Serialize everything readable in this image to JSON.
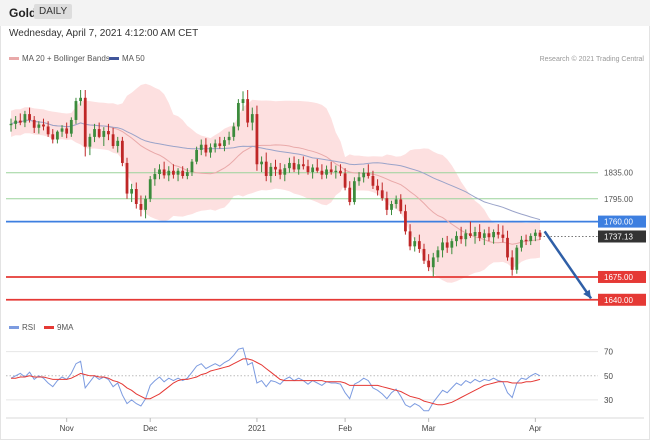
{
  "header": {
    "symbol": "Gold",
    "timeframe": "DAILY",
    "datetime": "Wednesday, April 7, 2021 4:12:00 AM CET"
  },
  "legend": {
    "ma20": "MA 20 + Bollinger Bands",
    "ma50": "MA 50",
    "credit": "Research © 2021 Trading Central"
  },
  "colors": {
    "bull": "#3c8b3c",
    "bear": "#bf2727",
    "band": "#fde0e0",
    "ma20": "#e9a9a9",
    "ma50": "#9aa3c9",
    "support": "#e53935",
    "resistance_green": "#9bd39b",
    "resistance_blue": "#3d7fe0",
    "arrow": "#2f5fa7",
    "rsi": "#7c9be0",
    "rsi_ma": "#e53935"
  },
  "chart_data": [
    {
      "type": "candlestick",
      "yscale": [
        1655,
        1985
      ],
      "x_labels": [
        {
          "label": "Nov",
          "index": 12
        },
        {
          "label": "Dec",
          "index": 30
        },
        {
          "label": "2021",
          "index": 53
        },
        {
          "label": "Feb",
          "index": 72
        },
        {
          "label": "Mar",
          "index": 90
        },
        {
          "label": "Apr",
          "index": 113
        }
      ],
      "levels": [
        {
          "value": 1835.0,
          "label": "1835.00",
          "kind": "resistance",
          "color": "#9bd39b",
          "style": "thin"
        },
        {
          "value": 1795.0,
          "label": "1795.00",
          "kind": "resistance",
          "color": "#9bd39b",
          "style": "thin"
        },
        {
          "value": 1760.0,
          "label": "1760.00",
          "kind": "resistance",
          "color": "#3d7fe0",
          "style": "solid"
        },
        {
          "value": 1737.13,
          "label": "1737.13",
          "kind": "last",
          "color": "#333333",
          "style": "dotted"
        },
        {
          "value": 1675.0,
          "label": "1675.00",
          "kind": "support",
          "color": "#e53935",
          "style": "solid"
        },
        {
          "value": 1640.0,
          "label": "1640.00",
          "kind": "support",
          "color": "#e53935",
          "style": "solid"
        }
      ],
      "arrow": {
        "from_index": 115,
        "from_value": 1745,
        "to_index": 125,
        "to_value": 1642
      },
      "candles": [
        {
          "o": 1908,
          "h": 1918,
          "l": 1898,
          "c": 1910
        },
        {
          "o": 1910,
          "h": 1922,
          "l": 1902,
          "c": 1915
        },
        {
          "o": 1915,
          "h": 1926,
          "l": 1908,
          "c": 1912
        },
        {
          "o": 1912,
          "h": 1930,
          "l": 1905,
          "c": 1925
        },
        {
          "o": 1925,
          "h": 1935,
          "l": 1912,
          "c": 1916
        },
        {
          "o": 1916,
          "h": 1922,
          "l": 1896,
          "c": 1904
        },
        {
          "o": 1904,
          "h": 1914,
          "l": 1895,
          "c": 1909
        },
        {
          "o": 1909,
          "h": 1918,
          "l": 1900,
          "c": 1906
        },
        {
          "o": 1906,
          "h": 1914,
          "l": 1890,
          "c": 1894
        },
        {
          "o": 1894,
          "h": 1902,
          "l": 1880,
          "c": 1886
        },
        {
          "o": 1886,
          "h": 1900,
          "l": 1880,
          "c": 1898
        },
        {
          "o": 1898,
          "h": 1908,
          "l": 1890,
          "c": 1903
        },
        {
          "o": 1903,
          "h": 1912,
          "l": 1888,
          "c": 1895
        },
        {
          "o": 1895,
          "h": 1920,
          "l": 1890,
          "c": 1916
        },
        {
          "o": 1916,
          "h": 1950,
          "l": 1910,
          "c": 1945
        },
        {
          "o": 1945,
          "h": 1962,
          "l": 1938,
          "c": 1950
        },
        {
          "o": 1950,
          "h": 1962,
          "l": 1860,
          "c": 1875
        },
        {
          "o": 1875,
          "h": 1895,
          "l": 1862,
          "c": 1890
        },
        {
          "o": 1890,
          "h": 1910,
          "l": 1882,
          "c": 1902
        },
        {
          "o": 1902,
          "h": 1912,
          "l": 1888,
          "c": 1890
        },
        {
          "o": 1890,
          "h": 1905,
          "l": 1876,
          "c": 1899
        },
        {
          "o": 1899,
          "h": 1910,
          "l": 1885,
          "c": 1894
        },
        {
          "o": 1894,
          "h": 1904,
          "l": 1872,
          "c": 1876
        },
        {
          "o": 1876,
          "h": 1890,
          "l": 1866,
          "c": 1884
        },
        {
          "o": 1884,
          "h": 1890,
          "l": 1845,
          "c": 1850
        },
        {
          "o": 1850,
          "h": 1858,
          "l": 1795,
          "c": 1803
        },
        {
          "o": 1803,
          "h": 1818,
          "l": 1790,
          "c": 1810
        },
        {
          "o": 1810,
          "h": 1820,
          "l": 1780,
          "c": 1787
        },
        {
          "o": 1787,
          "h": 1800,
          "l": 1768,
          "c": 1778
        },
        {
          "o": 1778,
          "h": 1800,
          "l": 1765,
          "c": 1795
        },
        {
          "o": 1795,
          "h": 1830,
          "l": 1790,
          "c": 1825
        },
        {
          "o": 1825,
          "h": 1842,
          "l": 1815,
          "c": 1833
        },
        {
          "o": 1833,
          "h": 1848,
          "l": 1825,
          "c": 1840
        },
        {
          "o": 1840,
          "h": 1852,
          "l": 1826,
          "c": 1831
        },
        {
          "o": 1831,
          "h": 1845,
          "l": 1822,
          "c": 1838
        },
        {
          "o": 1838,
          "h": 1848,
          "l": 1826,
          "c": 1832
        },
        {
          "o": 1832,
          "h": 1842,
          "l": 1822,
          "c": 1838
        },
        {
          "o": 1838,
          "h": 1845,
          "l": 1826,
          "c": 1830
        },
        {
          "o": 1830,
          "h": 1842,
          "l": 1825,
          "c": 1836
        },
        {
          "o": 1836,
          "h": 1856,
          "l": 1830,
          "c": 1852
        },
        {
          "o": 1852,
          "h": 1875,
          "l": 1848,
          "c": 1870
        },
        {
          "o": 1870,
          "h": 1886,
          "l": 1862,
          "c": 1878
        },
        {
          "o": 1878,
          "h": 1888,
          "l": 1860,
          "c": 1866
        },
        {
          "o": 1866,
          "h": 1880,
          "l": 1858,
          "c": 1874
        },
        {
          "o": 1874,
          "h": 1886,
          "l": 1866,
          "c": 1880
        },
        {
          "o": 1880,
          "h": 1890,
          "l": 1872,
          "c": 1876
        },
        {
          "o": 1876,
          "h": 1890,
          "l": 1868,
          "c": 1885
        },
        {
          "o": 1885,
          "h": 1898,
          "l": 1878,
          "c": 1890
        },
        {
          "o": 1890,
          "h": 1912,
          "l": 1884,
          "c": 1906
        },
        {
          "o": 1906,
          "h": 1948,
          "l": 1900,
          "c": 1942
        },
        {
          "o": 1942,
          "h": 1960,
          "l": 1930,
          "c": 1948
        },
        {
          "o": 1948,
          "h": 1962,
          "l": 1905,
          "c": 1912
        },
        {
          "o": 1912,
          "h": 1935,
          "l": 1900,
          "c": 1925
        },
        {
          "o": 1925,
          "h": 1938,
          "l": 1838,
          "c": 1848
        },
        {
          "o": 1848,
          "h": 1860,
          "l": 1836,
          "c": 1852
        },
        {
          "o": 1852,
          "h": 1866,
          "l": 1822,
          "c": 1830
        },
        {
          "o": 1830,
          "h": 1850,
          "l": 1820,
          "c": 1844
        },
        {
          "o": 1844,
          "h": 1855,
          "l": 1830,
          "c": 1840
        },
        {
          "o": 1840,
          "h": 1850,
          "l": 1825,
          "c": 1832
        },
        {
          "o": 1832,
          "h": 1848,
          "l": 1822,
          "c": 1842
        },
        {
          "o": 1842,
          "h": 1858,
          "l": 1835,
          "c": 1850
        },
        {
          "o": 1850,
          "h": 1860,
          "l": 1836,
          "c": 1840
        },
        {
          "o": 1840,
          "h": 1856,
          "l": 1832,
          "c": 1848
        },
        {
          "o": 1848,
          "h": 1860,
          "l": 1840,
          "c": 1845
        },
        {
          "o": 1845,
          "h": 1855,
          "l": 1832,
          "c": 1836
        },
        {
          "o": 1836,
          "h": 1848,
          "l": 1826,
          "c": 1843
        },
        {
          "o": 1843,
          "h": 1856,
          "l": 1835,
          "c": 1838
        },
        {
          "o": 1838,
          "h": 1848,
          "l": 1825,
          "c": 1832
        },
        {
          "o": 1832,
          "h": 1846,
          "l": 1826,
          "c": 1840
        },
        {
          "o": 1840,
          "h": 1852,
          "l": 1832,
          "c": 1836
        },
        {
          "o": 1836,
          "h": 1846,
          "l": 1826,
          "c": 1838
        },
        {
          "o": 1838,
          "h": 1848,
          "l": 1830,
          "c": 1834
        },
        {
          "o": 1834,
          "h": 1842,
          "l": 1808,
          "c": 1812
        },
        {
          "o": 1812,
          "h": 1822,
          "l": 1785,
          "c": 1790
        },
        {
          "o": 1790,
          "h": 1828,
          "l": 1786,
          "c": 1822
        },
        {
          "o": 1822,
          "h": 1836,
          "l": 1815,
          "c": 1828
        },
        {
          "o": 1828,
          "h": 1842,
          "l": 1820,
          "c": 1835
        },
        {
          "o": 1835,
          "h": 1848,
          "l": 1826,
          "c": 1830
        },
        {
          "o": 1830,
          "h": 1838,
          "l": 1810,
          "c": 1815
        },
        {
          "o": 1815,
          "h": 1825,
          "l": 1800,
          "c": 1808
        },
        {
          "o": 1808,
          "h": 1820,
          "l": 1792,
          "c": 1796
        },
        {
          "o": 1796,
          "h": 1806,
          "l": 1770,
          "c": 1778
        },
        {
          "o": 1778,
          "h": 1792,
          "l": 1770,
          "c": 1787
        },
        {
          "o": 1787,
          "h": 1800,
          "l": 1780,
          "c": 1794
        },
        {
          "o": 1794,
          "h": 1802,
          "l": 1772,
          "c": 1776
        },
        {
          "o": 1776,
          "h": 1786,
          "l": 1740,
          "c": 1745
        },
        {
          "o": 1745,
          "h": 1756,
          "l": 1716,
          "c": 1722
        },
        {
          "o": 1722,
          "h": 1736,
          "l": 1714,
          "c": 1730
        },
        {
          "o": 1730,
          "h": 1740,
          "l": 1712,
          "c": 1718
        },
        {
          "o": 1718,
          "h": 1726,
          "l": 1695,
          "c": 1700
        },
        {
          "o": 1700,
          "h": 1710,
          "l": 1684,
          "c": 1690
        },
        {
          "o": 1690,
          "h": 1712,
          "l": 1676,
          "c": 1705
        },
        {
          "o": 1705,
          "h": 1722,
          "l": 1698,
          "c": 1716
        },
        {
          "o": 1716,
          "h": 1735,
          "l": 1705,
          "c": 1728
        },
        {
          "o": 1728,
          "h": 1738,
          "l": 1712,
          "c": 1720
        },
        {
          "o": 1720,
          "h": 1734,
          "l": 1710,
          "c": 1730
        },
        {
          "o": 1730,
          "h": 1745,
          "l": 1722,
          "c": 1738
        },
        {
          "o": 1738,
          "h": 1752,
          "l": 1726,
          "c": 1733
        },
        {
          "o": 1733,
          "h": 1748,
          "l": 1722,
          "c": 1742
        },
        {
          "o": 1742,
          "h": 1760,
          "l": 1735,
          "c": 1738
        },
        {
          "o": 1738,
          "h": 1752,
          "l": 1726,
          "c": 1744
        },
        {
          "o": 1744,
          "h": 1756,
          "l": 1730,
          "c": 1735
        },
        {
          "o": 1735,
          "h": 1748,
          "l": 1724,
          "c": 1742
        },
        {
          "o": 1742,
          "h": 1752,
          "l": 1730,
          "c": 1736
        },
        {
          "o": 1736,
          "h": 1748,
          "l": 1726,
          "c": 1744
        },
        {
          "o": 1744,
          "h": 1756,
          "l": 1734,
          "c": 1740
        },
        {
          "o": 1740,
          "h": 1754,
          "l": 1728,
          "c": 1735
        },
        {
          "o": 1735,
          "h": 1746,
          "l": 1700,
          "c": 1705
        },
        {
          "o": 1705,
          "h": 1716,
          "l": 1677,
          "c": 1686
        },
        {
          "o": 1686,
          "h": 1724,
          "l": 1680,
          "c": 1720
        },
        {
          "o": 1720,
          "h": 1738,
          "l": 1714,
          "c": 1732
        },
        {
          "o": 1732,
          "h": 1740,
          "l": 1724,
          "c": 1730
        },
        {
          "o": 1730,
          "h": 1742,
          "l": 1724,
          "c": 1738
        },
        {
          "o": 1738,
          "h": 1748,
          "l": 1730,
          "c": 1743
        },
        {
          "o": 1743,
          "h": 1747,
          "l": 1732,
          "c": 1737
        }
      ]
    },
    {
      "type": "line",
      "name": "RSI",
      "ylim": [
        20,
        78
      ],
      "y_ticks": [
        70,
        50,
        30
      ],
      "series": [
        {
          "name": "RSI",
          "values": [
            48,
            50,
            52,
            49,
            53,
            47,
            50,
            48,
            44,
            41,
            46,
            49,
            47,
            52,
            60,
            62,
            40,
            45,
            50,
            47,
            49,
            47,
            41,
            44,
            34,
            27,
            30,
            27,
            25,
            31,
            42,
            46,
            49,
            45,
            48,
            46,
            48,
            46,
            48,
            53,
            58,
            60,
            56,
            58,
            60,
            58,
            61,
            63,
            67,
            72,
            73,
            59,
            61,
            44,
            46,
            41,
            46,
            45,
            43,
            47,
            49,
            46,
            48,
            46,
            43,
            46,
            44,
            42,
            45,
            44,
            44,
            43,
            36,
            31,
            43,
            45,
            48,
            46,
            40,
            38,
            35,
            31,
            36,
            39,
            33,
            26,
            24,
            27,
            25,
            21,
            21,
            28,
            33,
            38,
            36,
            40,
            44,
            42,
            46,
            44,
            47,
            45,
            47,
            46,
            48,
            46,
            45,
            36,
            32,
            44,
            48,
            47,
            50,
            52,
            50
          ]
        },
        {
          "name": "9MA",
          "values": [
            48,
            48,
            49,
            49,
            50,
            49,
            49,
            49,
            48,
            47,
            47,
            47,
            47,
            48,
            50,
            52,
            51,
            50,
            50,
            49,
            49,
            48,
            46,
            45,
            43,
            40,
            38,
            35,
            33,
            31,
            31,
            33,
            35,
            38,
            41,
            44,
            46,
            47,
            47,
            48,
            49,
            51,
            52,
            54,
            55,
            56,
            57,
            58,
            60,
            62,
            64,
            64,
            63,
            61,
            59,
            56,
            53,
            50,
            47,
            46,
            46,
            46,
            46,
            46,
            46,
            46,
            46,
            46,
            45,
            45,
            45,
            45,
            44,
            42,
            42,
            42,
            42,
            42,
            42,
            42,
            41,
            40,
            39,
            38,
            37,
            35,
            33,
            32,
            31,
            29,
            28,
            27,
            26,
            26,
            27,
            28,
            30,
            32,
            34,
            36,
            38,
            40,
            42,
            43,
            44,
            45,
            45,
            45,
            44,
            44,
            44,
            45,
            45,
            46,
            47
          ]
        }
      ]
    }
  ]
}
